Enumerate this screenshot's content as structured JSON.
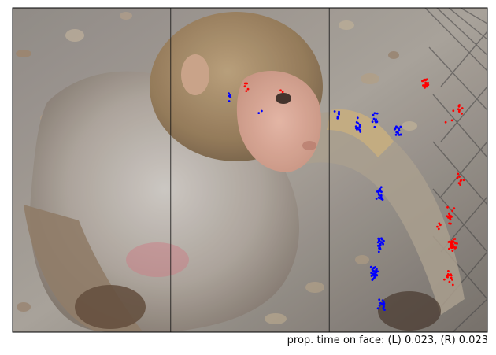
{
  "chart_data": {
    "type": "scatter",
    "title": "",
    "xlabel": "",
    "ylabel": "",
    "xlim": [
      0,
      1
    ],
    "ylim": [
      0,
      1
    ],
    "grid": false,
    "background_image": "rhesus-macaque-photo",
    "dividers_x": [
      0.333,
      0.667
    ],
    "series": [
      {
        "color": "#0000ff",
        "clusters": [
          {
            "x": 0.686,
            "y": 0.675,
            "n": 6
          },
          {
            "x": 0.728,
            "y": 0.632,
            "n": 14
          },
          {
            "x": 0.764,
            "y": 0.655,
            "n": 10
          },
          {
            "x": 0.812,
            "y": 0.625,
            "n": 16
          },
          {
            "x": 0.774,
            "y": 0.425,
            "n": 16
          },
          {
            "x": 0.774,
            "y": 0.275,
            "n": 22
          },
          {
            "x": 0.762,
            "y": 0.185,
            "n": 30
          },
          {
            "x": 0.778,
            "y": 0.085,
            "n": 16
          },
          {
            "x": 0.455,
            "y": 0.718,
            "n": 6
          },
          {
            "x": 0.52,
            "y": 0.688,
            "n": 2
          }
        ]
      },
      {
        "color": "#ff0000",
        "clusters": [
          {
            "x": 0.493,
            "y": 0.755,
            "n": 5
          },
          {
            "x": 0.565,
            "y": 0.745,
            "n": 2
          },
          {
            "x": 0.871,
            "y": 0.765,
            "n": 22
          },
          {
            "x": 0.941,
            "y": 0.69,
            "n": 8
          },
          {
            "x": 0.925,
            "y": 0.66,
            "n": 3
          },
          {
            "x": 0.942,
            "y": 0.465,
            "n": 8
          },
          {
            "x": 0.92,
            "y": 0.36,
            "n": 16
          },
          {
            "x": 0.926,
            "y": 0.27,
            "n": 34
          },
          {
            "x": 0.92,
            "y": 0.165,
            "n": 14
          },
          {
            "x": 0.9,
            "y": 0.32,
            "n": 4
          }
        ]
      }
    ]
  },
  "caption": "prop. time on face: (L) 0.023, (R) 0.023"
}
